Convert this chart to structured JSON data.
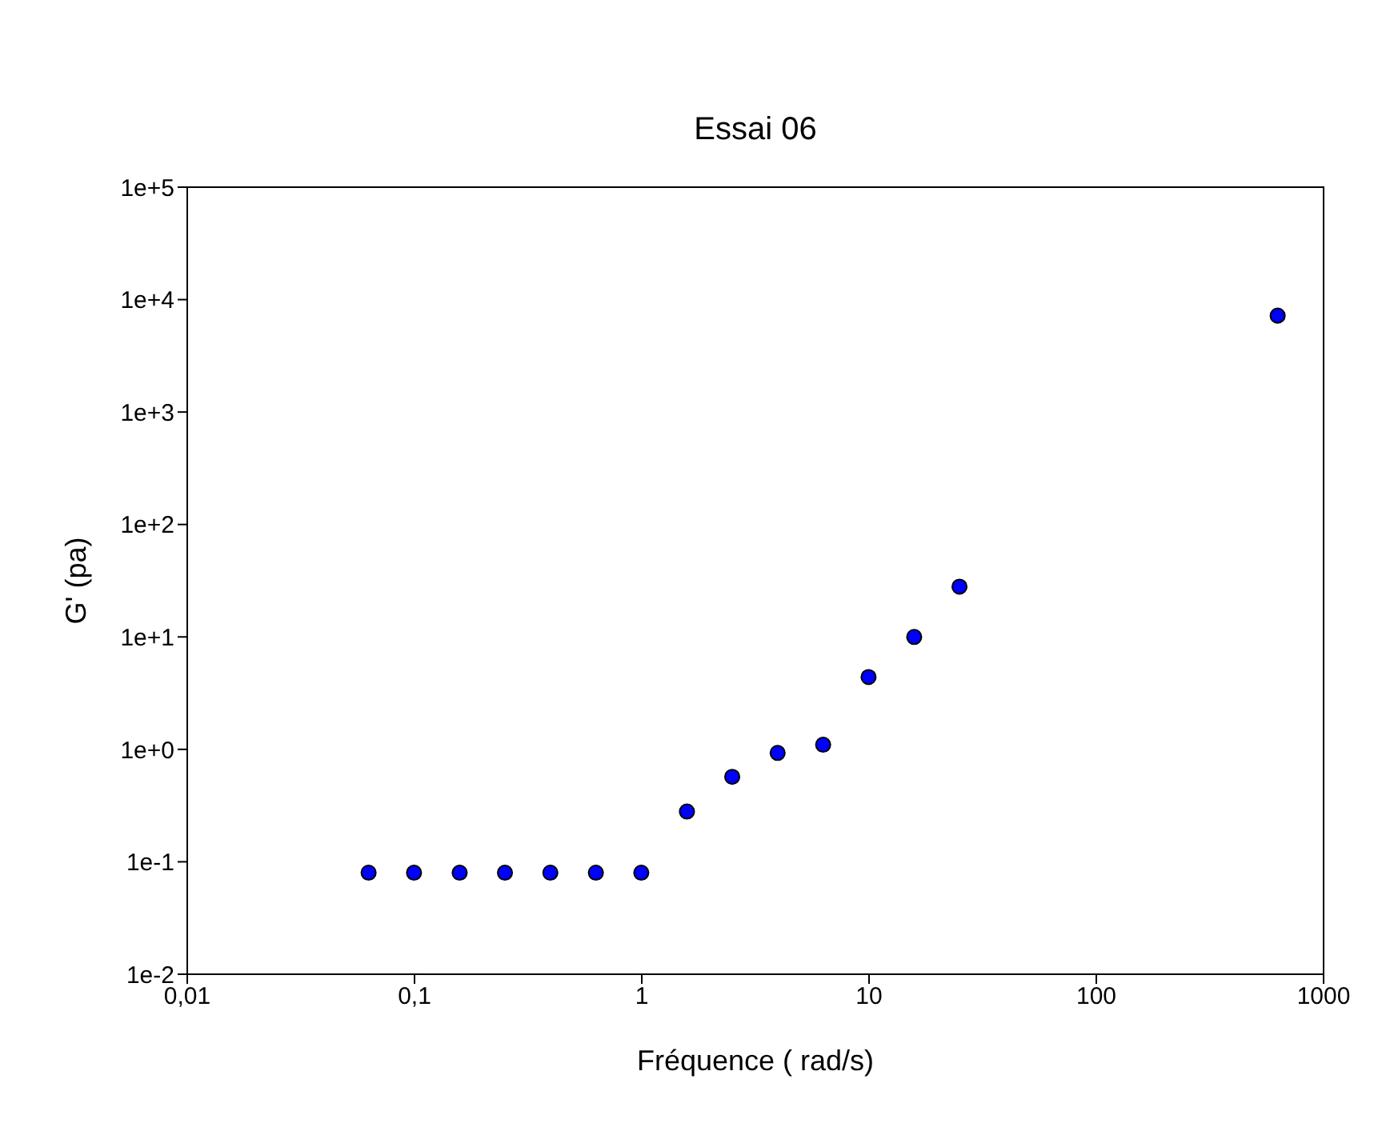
{
  "chart_data": {
    "type": "scatter",
    "title": "Essai 06",
    "xlabel": "Fréquence ( rad/s)",
    "ylabel": "G' (pa)",
    "x": [
      0.0628,
      0.0995,
      0.158,
      0.25,
      0.396,
      0.628,
      0.995,
      1.58,
      2.5,
      3.96,
      6.28,
      9.95,
      15.8,
      25,
      628
    ],
    "series": [
      {
        "color": "#0000ff",
        "values": [
          0.08,
          0.08,
          0.08,
          0.08,
          0.08,
          0.08,
          0.08,
          0.28,
          0.57,
          0.93,
          1.1,
          4.4,
          10,
          28,
          7200
        ]
      }
    ],
    "log": "xy",
    "xlim": [
      0.01,
      1000
    ],
    "ylim": [
      0.01,
      100000
    ],
    "xticks": [
      {
        "value": 0.01,
        "label": "0,01"
      },
      {
        "value": 0.1,
        "label": "0,1"
      },
      1,
      10,
      100,
      1000
    ],
    "yticks": [
      {
        "value": 0.01,
        "label": "1e-2"
      },
      {
        "value": 0.1,
        "label": "1e-1"
      },
      {
        "value": 1,
        "label": "1e+0"
      },
      {
        "value": 10,
        "label": "1e+1"
      },
      {
        "value": 100,
        "label": "1e+2"
      },
      {
        "value": 1000,
        "label": "1e+3"
      },
      {
        "value": 10000,
        "label": "1e+4"
      },
      {
        "value": 100000,
        "label": "1e+5"
      }
    ],
    "marker": "circle",
    "grid": false,
    "legend": false
  }
}
